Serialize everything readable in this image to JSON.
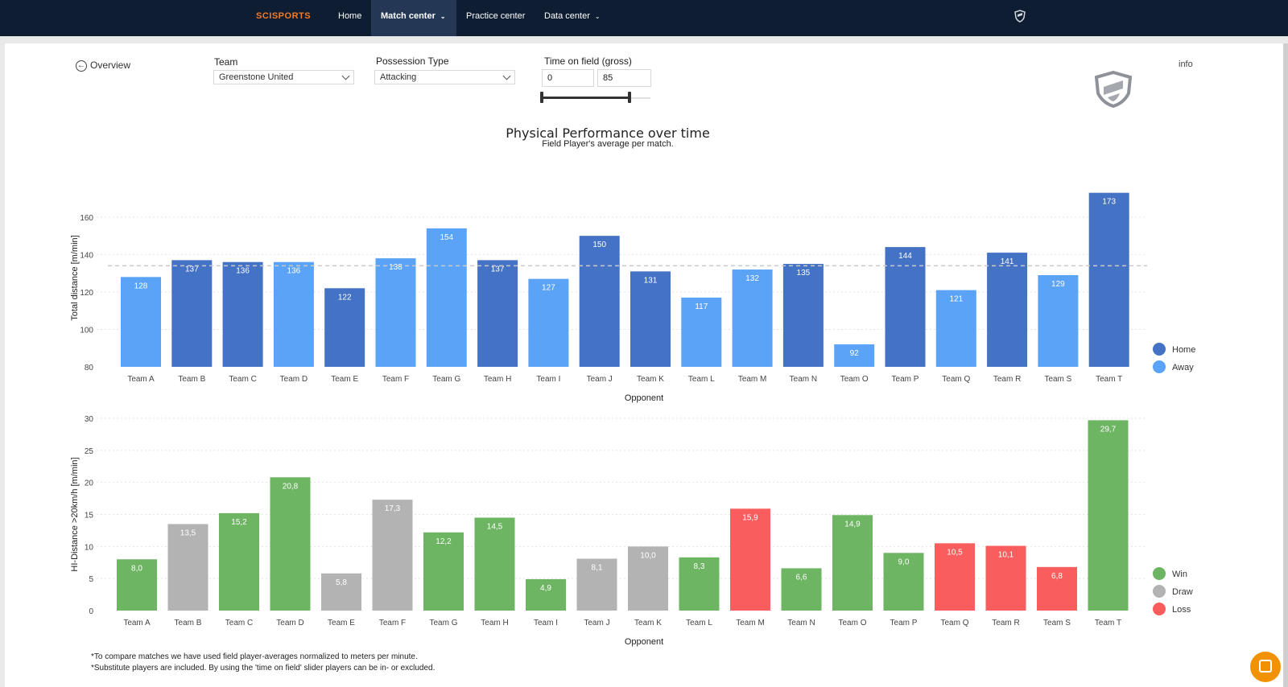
{
  "nav": {
    "logo": "SCISPORTS",
    "items": [
      {
        "label": "Home"
      },
      {
        "label": "Match center",
        "active": true,
        "dropdown": true
      },
      {
        "label": "Practice center"
      },
      {
        "label": "Data center",
        "dropdown": true
      }
    ],
    "shield_icon": "shield-icon"
  },
  "filters": {
    "back_label": "Overview",
    "team_label": "Team",
    "team_value": "Greenstone United",
    "possession_label": "Possession Type",
    "possession_value": "Attacking",
    "time_label": "Time on field (gross)",
    "time_min": "0",
    "time_max": "85",
    "info_label": "info"
  },
  "colors": {
    "home": "#4472c4",
    "away": "#5ba3f7",
    "win": "#6db562",
    "draw": "#b3b3b3",
    "loss": "#fa5d5d",
    "nav_bg": "#0f1d33",
    "accent": "#f47b20"
  },
  "page": {
    "title": "Physical Performance over time",
    "subtitle": "Field Player's average per match.",
    "footnote1": "*To compare matches we have used field player-averages normalized to meters per minute.",
    "footnote2": "*Substitute players are included. By using the 'time on field' slider players can be in- or excluded."
  },
  "chart_data": [
    {
      "type": "bar",
      "categories": [
        "Team A",
        "Team B",
        "Team C",
        "Team D",
        "Team E",
        "Team F",
        "Team G",
        "Team H",
        "Team I",
        "Team J",
        "Team K",
        "Team L",
        "Team M",
        "Team N",
        "Team O",
        "Team P",
        "Team Q",
        "Team R",
        "Team S",
        "Team T"
      ],
      "values": [
        128,
        137,
        136,
        136,
        122,
        138,
        154,
        137,
        127,
        150,
        131,
        117,
        132,
        135,
        92,
        144,
        121,
        141,
        129,
        173
      ],
      "labels": [
        "128",
        "137",
        "136",
        "136",
        "122",
        "138",
        "154",
        "137",
        "127",
        "150",
        "131",
        "117",
        "132",
        "135",
        "92",
        "144",
        "121",
        "141",
        "129",
        "173"
      ],
      "venue": [
        "Away",
        "Home",
        "Home",
        "Away",
        "Home",
        "Away",
        "Away",
        "Home",
        "Away",
        "Home",
        "Home",
        "Away",
        "Away",
        "Home",
        "Away",
        "Home",
        "Away",
        "Home",
        "Away",
        "Home"
      ],
      "legend": [
        "Home",
        "Away"
      ],
      "legend_position": "right",
      "xlabel": "Opponent",
      "ylabel": "Total distance [m/min]",
      "ylim": [
        80,
        175
      ],
      "yticks": [
        80,
        100,
        120,
        140,
        160
      ],
      "reference_line": 134,
      "grid": true
    },
    {
      "type": "bar",
      "categories": [
        "Team A",
        "Team B",
        "Team C",
        "Team D",
        "Team E",
        "Team F",
        "Team G",
        "Team H",
        "Team I",
        "Team J",
        "Team K",
        "Team L",
        "Team M",
        "Team N",
        "Team O",
        "Team P",
        "Team Q",
        "Team R",
        "Team S",
        "Team T"
      ],
      "values": [
        8.0,
        13.5,
        15.2,
        20.8,
        5.8,
        17.3,
        12.2,
        14.5,
        4.9,
        8.1,
        10.0,
        8.3,
        15.9,
        6.6,
        14.9,
        9.0,
        10.5,
        10.1,
        6.8,
        29.7
      ],
      "labels": [
        "8,0",
        "13,5",
        "15,2",
        "20,8",
        "5,8",
        "17,3",
        "12,2",
        "14,5",
        "4,9",
        "8,1",
        "10,0",
        "8,3",
        "15,9",
        "6,6",
        "14,9",
        "9,0",
        "10,5",
        "10,1",
        "6,8",
        "29,7"
      ],
      "result": [
        "Win",
        "Draw",
        "Win",
        "Win",
        "Draw",
        "Draw",
        "Win",
        "Win",
        "Win",
        "Draw",
        "Draw",
        "Win",
        "Loss",
        "Win",
        "Win",
        "Win",
        "Loss",
        "Loss",
        "Loss",
        "Win"
      ],
      "legend": [
        "Win",
        "Draw",
        "Loss"
      ],
      "legend_position": "right",
      "xlabel": "Opponent",
      "ylabel": "HI-Distance >20km/h [m/min]",
      "ylim": [
        0,
        30
      ],
      "yticks": [
        0,
        5,
        10,
        15,
        20,
        25,
        30
      ],
      "grid": true
    }
  ]
}
